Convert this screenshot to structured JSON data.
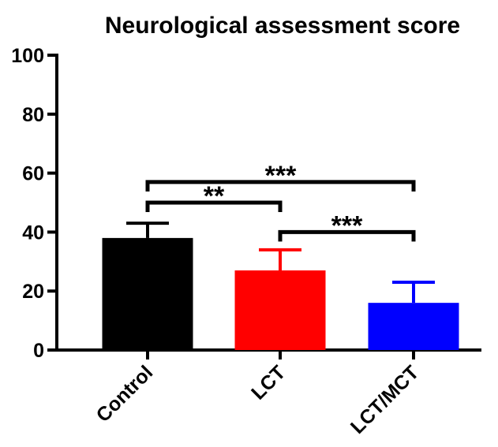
{
  "chart_data": {
    "type": "bar",
    "title": "Neurological assessment score",
    "categories": [
      "Control",
      "LCT",
      "LCT/MCT"
    ],
    "series": [
      {
        "colors": [
          "#000000",
          "#ff0000",
          "#0000ff"
        ],
        "values": [
          38,
          27,
          16
        ],
        "errors": [
          5,
          7,
          7
        ]
      }
    ],
    "ylim": [
      0,
      100
    ],
    "yticks": [
      0,
      20,
      40,
      60,
      80,
      100
    ],
    "annotations": [
      {
        "text": "**",
        "from": 0,
        "to": 1,
        "y": 50
      },
      {
        "text": "***",
        "from": 0,
        "to": 2,
        "y": 57
      },
      {
        "text": "***",
        "from": 1,
        "to": 2,
        "y": 40
      }
    ]
  }
}
